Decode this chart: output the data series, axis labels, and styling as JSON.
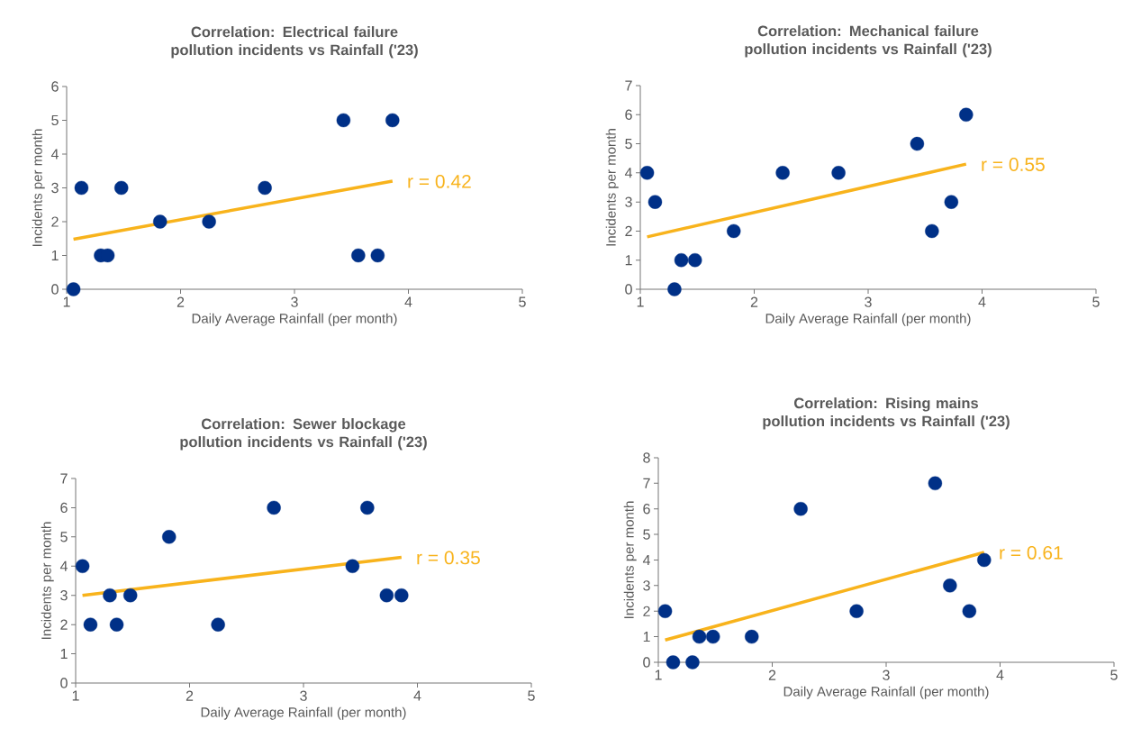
{
  "chart_data": [
    {
      "type": "scatter",
      "title": "Correlation: Electrical failure pollution incidents vs Rainfall ('23)",
      "xlabel": "Daily Average Rainfall (per month)",
      "ylabel": "Incidents per month",
      "xlim": [
        1,
        5
      ],
      "xticks": [
        1,
        2,
        3,
        4,
        5
      ],
      "ylim": [
        0,
        6
      ],
      "yticks": [
        0,
        1,
        2,
        3,
        4,
        5,
        6
      ],
      "annotations": [
        "r = 0.42"
      ],
      "series": [
        {
          "color": "#003087",
          "marker": "circle",
          "x": [
            1.06,
            1.13,
            1.3,
            1.36,
            1.48,
            1.82,
            2.25,
            2.74,
            3.43,
            3.56,
            3.73,
            3.86
          ],
          "values": [
            0,
            3,
            1,
            1,
            3,
            2,
            2,
            3,
            5,
            1,
            1,
            5
          ]
        },
        {
          "type": "line",
          "marker": "none",
          "color": "#f8b31c",
          "x": [
            1.06,
            3.86
          ],
          "values": [
            1.48,
            3.2
          ]
        }
      ]
    },
    {
      "type": "scatter",
      "title": "Correlation: Mechanical failure pollution incidents vs Rainfall ('23)",
      "xlabel": "Daily Average Rainfall (per month)",
      "ylabel": "Incidents per month",
      "xlim": [
        1,
        5
      ],
      "xticks": [
        1,
        2,
        3,
        4,
        5
      ],
      "ylim": [
        0,
        7
      ],
      "yticks": [
        0,
        1,
        2,
        3,
        4,
        5,
        6,
        7
      ],
      "annotations": [
        "r = 0.55"
      ],
      "series": [
        {
          "color": "#003087",
          "marker": "circle",
          "x": [
            1.06,
            1.13,
            1.3,
            1.36,
            1.48,
            1.82,
            2.25,
            2.74,
            3.43,
            3.56,
            3.73,
            3.86
          ],
          "values": [
            4,
            3,
            0,
            1,
            1,
            2,
            4,
            4,
            5,
            2,
            3,
            6
          ]
        },
        {
          "type": "line",
          "marker": "none",
          "color": "#f8b31c",
          "x": [
            1.06,
            3.86
          ],
          "values": [
            1.8,
            4.3
          ]
        }
      ]
    },
    {
      "type": "scatter",
      "title": "Correlation: Sewer blockage pollution incidents vs Rainfall ('23)",
      "xlabel": "Daily Average Rainfall (per month)",
      "ylabel": "Incidents per month",
      "xlim": [
        1,
        5
      ],
      "xticks": [
        1,
        2,
        3,
        4,
        5
      ],
      "ylim": [
        0,
        7
      ],
      "yticks": [
        0,
        1,
        2,
        3,
        4,
        5,
        6,
        7
      ],
      "annotations": [
        "r = 0.35"
      ],
      "series": [
        {
          "color": "#003087",
          "marker": "circle",
          "x": [
            1.06,
            1.13,
            1.3,
            1.36,
            1.48,
            1.82,
            2.25,
            2.74,
            3.43,
            3.56,
            3.73,
            3.86
          ],
          "values": [
            4,
            2,
            3,
            2,
            3,
            5,
            2,
            6,
            4,
            6,
            3,
            3
          ]
        },
        {
          "type": "line",
          "marker": "none",
          "color": "#f8b31c",
          "x": [
            1.06,
            3.86
          ],
          "values": [
            3.0,
            4.3
          ]
        }
      ]
    },
    {
      "type": "scatter",
      "title": "Correlation: Rising mains pollution incidents vs Rainfall ('23)",
      "xlabel": "Daily Average Rainfall (per month)",
      "ylabel": "Incidents per month",
      "xlim": [
        1,
        5
      ],
      "xticks": [
        1,
        2,
        3,
        4,
        5
      ],
      "ylim": [
        0,
        8
      ],
      "yticks": [
        0,
        1,
        2,
        3,
        4,
        5,
        6,
        7,
        8
      ],
      "annotations": [
        "r = 0.61"
      ],
      "series": [
        {
          "color": "#003087",
          "marker": "circle",
          "x": [
            1.06,
            1.13,
            1.3,
            1.36,
            1.48,
            1.82,
            2.25,
            2.74,
            3.43,
            3.56,
            3.73,
            3.86
          ],
          "values": [
            2,
            0,
            0,
            1,
            1,
            1,
            6,
            2,
            7,
            3,
            2,
            4
          ]
        },
        {
          "type": "line",
          "marker": "none",
          "color": "#f8b31c",
          "x": [
            1.06,
            3.86
          ],
          "values": [
            0.87,
            4.3
          ]
        }
      ]
    }
  ]
}
